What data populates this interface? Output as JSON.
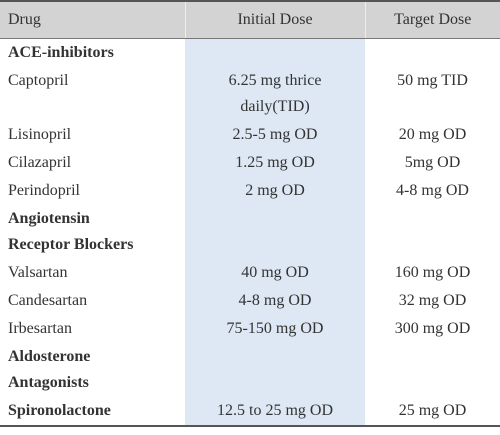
{
  "table": {
    "header": [
      "Drug",
      "Initial Dose",
      "Target Dose"
    ],
    "rows": [
      {
        "section": "ACE-inhibitors"
      },
      {
        "cells": [
          "Captopril",
          "6.25 mg thrice daily(TID)",
          "50 mg TID"
        ]
      },
      {
        "cells": [
          "Lisinopril",
          "2.5-5 mg OD",
          "20 mg OD"
        ]
      },
      {
        "cells": [
          "Cilazapril",
          "1.25 mg OD",
          "5mg OD"
        ]
      },
      {
        "cells": [
          "Perindopril",
          "2 mg OD",
          "4-8 mg OD"
        ]
      },
      {
        "section": "Angiotensin Receptor Blockers"
      },
      {
        "cells": [
          "Valsartan",
          "40 mg OD",
          "160 mg OD"
        ]
      },
      {
        "cells": [
          "Candesartan",
          "4-8 mg OD",
          "32 mg OD"
        ]
      },
      {
        "cells": [
          "Irbesartan",
          "75-150 mg OD",
          "300 mg OD"
        ]
      },
      {
        "section": "Aldosterone Antagonists"
      },
      {
        "cells": [
          "Spironolactone",
          "12.5 to 25 mg OD",
          "25 mg OD"
        ],
        "bold": true
      }
    ]
  }
}
